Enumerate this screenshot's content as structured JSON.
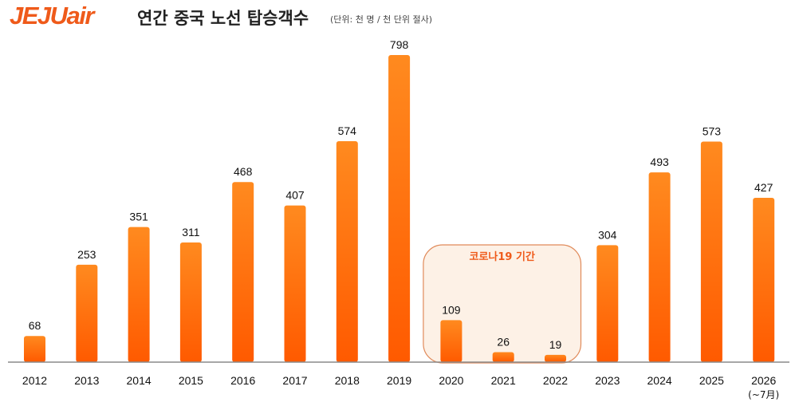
{
  "header": {
    "logo": "JEJUair",
    "title": "연간 중국 노선 탑승객수",
    "unit_note": "(단위: 천 명 / 천 단위 절사)"
  },
  "chart_data": {
    "type": "bar",
    "categories": [
      "2012",
      "2013",
      "2014",
      "2015",
      "2016",
      "2017",
      "2018",
      "2019",
      "2020",
      "2021",
      "2022",
      "2023",
      "2024",
      "2025",
      "2026"
    ],
    "category_sublabels": {
      "2026": "(~7月)"
    },
    "values": [
      68,
      253,
      351,
      311,
      468,
      407,
      574,
      798,
      109,
      26,
      19,
      304,
      493,
      573,
      427
    ],
    "title": "연간 중국 노선 탑승객수",
    "unit": "(단위: 천 명 / 천 단위 절사)",
    "ylim": [
      0,
      800
    ],
    "grid": false,
    "legend": "none",
    "bar_color_top": "#ff8a1f",
    "bar_color_bottom": "#ff5a00",
    "highlight": {
      "label": "코로나19 기간",
      "categories": [
        "2020",
        "2021",
        "2022"
      ],
      "fill": "#fdf1e6",
      "border": "#e08a5a",
      "text_color": "#ef5a1a"
    }
  }
}
